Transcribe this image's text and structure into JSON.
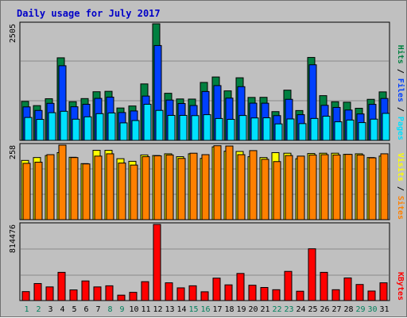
{
  "chart_data": {
    "type": "bar",
    "title": "Daily usage for July 2017",
    "x": [
      "1",
      "2",
      "3",
      "4",
      "5",
      "6",
      "7",
      "8",
      "9",
      "10",
      "11",
      "12",
      "13",
      "14",
      "15",
      "16",
      "17",
      "18",
      "19",
      "20",
      "21",
      "22",
      "23",
      "24",
      "25",
      "26",
      "27",
      "28",
      "29",
      "30",
      "31"
    ],
    "weekend_days": [
      "1",
      "2",
      "8",
      "9",
      "15",
      "16",
      "22",
      "23",
      "29",
      "30"
    ],
    "colors": {
      "hits": "#008040",
      "files": "#0040ff",
      "pages": "#00e0ff",
      "visits": "#ffff00",
      "sites": "#ff8000",
      "kbytes": "#ff0000",
      "weekday_label": "#000000",
      "weekend_label": "#00805c",
      "title": "#0000c8",
      "panel_bg": "#c0c0c0"
    },
    "panels": [
      {
        "name": "hits-files-pages",
        "max_label": "2505",
        "ylim": [
          0,
          2505
        ],
        "legend": [
          {
            "text": "Hits",
            "color": "#008040"
          },
          {
            "text": " / ",
            "color": "#000000"
          },
          {
            "text": "Files",
            "color": "#0040ff"
          },
          {
            "text": " / ",
            "color": "#000000"
          },
          {
            "text": "Pages",
            "color": "#00e0ff"
          }
        ],
        "series": [
          {
            "name": "Hits",
            "color": "#008040",
            "values": [
              837,
              747,
              895,
              1774,
              831,
              898,
              1045,
              1054,
              696,
              739,
              1213,
              2505,
              1012,
              890,
              887,
              1245,
              1362,
              1064,
              1345,
              923,
              925,
              618,
              1079,
              641,
              1782,
              961,
              830,
              820,
              690,
              882,
              1042
            ]
          },
          {
            "name": "Files",
            "color": "#0040ff",
            "values": [
              719,
              643,
              796,
              1604,
              722,
              776,
              902,
              929,
              598,
              632,
              952,
              2038,
              866,
              792,
              749,
              1050,
              1177,
              908,
              1154,
              800,
              799,
              532,
              882,
              552,
              1624,
              753,
              708,
              652,
              568,
              774,
              900
            ]
          },
          {
            "name": "Pages",
            "color": "#00e0ff",
            "values": [
              492,
              451,
              595,
              625,
              455,
              506,
              574,
              589,
              376,
              426,
              776,
              644,
              537,
              537,
              532,
              552,
              470,
              452,
              535,
              482,
              485,
              354,
              460,
              360,
              471,
              519,
              399,
              437,
              382,
              456,
              580
            ]
          }
        ]
      },
      {
        "name": "visits-sites",
        "max_label": "258",
        "ylim": [
          0,
          258
        ],
        "legend": [
          {
            "text": "Visits",
            "color": "#ffff00"
          },
          {
            "text": " / ",
            "color": "#000000"
          },
          {
            "text": "Sites",
            "color": "#ff8000"
          }
        ],
        "series": [
          {
            "name": "Visits",
            "color": "#ffff00",
            "values": [
              205,
              215,
              222,
              232,
              216,
              194,
              240,
              240,
              211,
              202,
              224,
              222,
              228,
              218,
              228,
              212,
              252,
              237,
              236,
              218,
              215,
              232,
              230,
              211,
              229,
              230,
              230,
              226,
              228,
              215,
              220
            ]
          },
          {
            "name": "Sites",
            "color": "#ff8000",
            "values": [
              195,
              199,
              225,
              258,
              215,
              193,
              220,
              228,
              196,
              189,
              218,
              221,
              224,
              212,
              230,
              225,
              256,
              255,
              225,
              239,
              209,
              201,
              222,
              220,
              224,
              225,
              224,
              226,
              224,
              214,
              228
            ]
          }
        ]
      },
      {
        "name": "kbytes",
        "max_label": "814476",
        "ylim": [
          0,
          814476
        ],
        "legend": [
          {
            "text": "KBytes",
            "color": "#ff0000"
          }
        ],
        "series": [
          {
            "name": "KBytes",
            "color": "#ff0000",
            "values": [
              96000,
              182000,
              146000,
              302000,
              114000,
              210000,
              146000,
              158000,
              58000,
              88000,
              202000,
              814476,
              190000,
              136000,
              158000,
              94000,
              240000,
              168000,
              290000,
              164000,
              140000,
              116000,
              312000,
              100000,
              554000,
              302000,
              116000,
              242000,
              172000,
              102000,
              190000
            ]
          }
        ]
      }
    ]
  }
}
